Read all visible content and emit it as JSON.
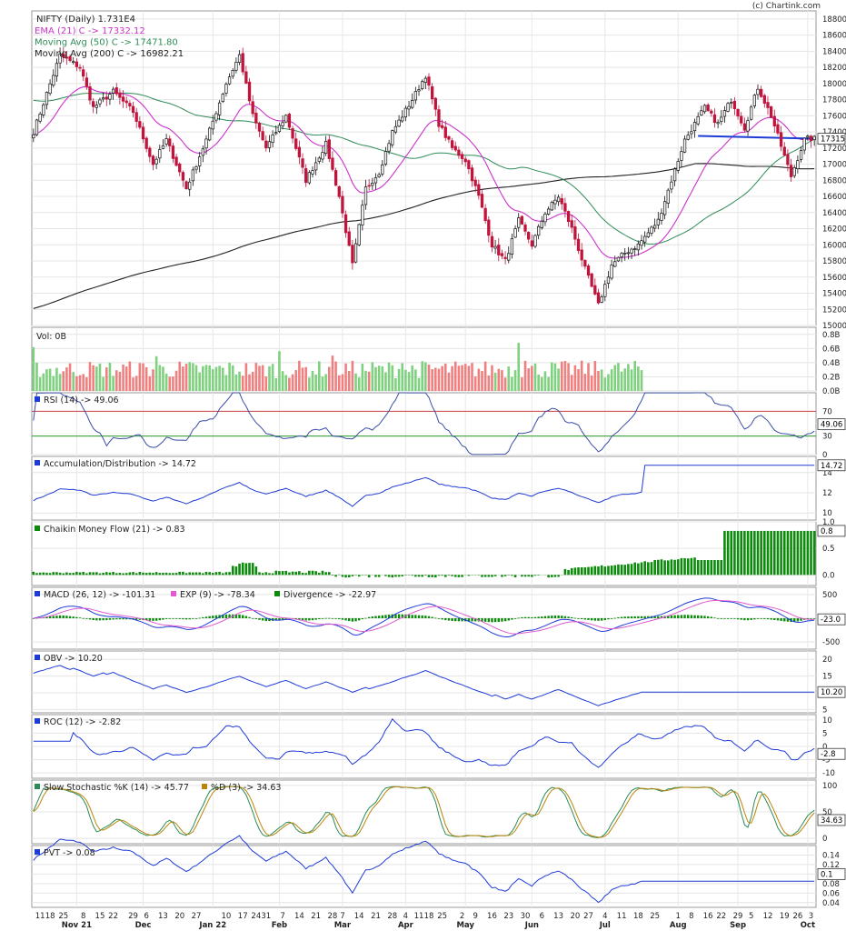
{
  "watermark": "(c) Chartink.com",
  "chart_data": {
    "type": "candlestick",
    "symbol_line": "NIFTY (Daily) 1.731E4",
    "price_panel": {
      "ylim": [
        15000,
        18900
      ],
      "ticks": [
        15000,
        15200,
        15400,
        15600,
        15800,
        16000,
        16200,
        16400,
        16600,
        16800,
        17000,
        17200,
        17400,
        17600,
        17800,
        18000,
        18200,
        18400,
        18600,
        18800
      ],
      "last_label": "17315",
      "overlays": [
        {
          "name": "EMA (21) C -> 17332.12",
          "color": "#cc33cc"
        },
        {
          "name": "Moving Avg (50) C -> 17471.80",
          "color": "#2e8b57"
        },
        {
          "name": "Moving Avg (200) C -> 16982.21",
          "color": "#222222"
        }
      ],
      "trendline_level": 17350,
      "waypoints": [
        [
          0,
          17400
        ],
        [
          8,
          18350
        ],
        [
          14,
          18200
        ],
        [
          18,
          17700
        ],
        [
          24,
          17900
        ],
        [
          30,
          17650
        ],
        [
          36,
          17000
        ],
        [
          40,
          17300
        ],
        [
          46,
          16700
        ],
        [
          52,
          17300
        ],
        [
          58,
          18000
        ],
        [
          62,
          18350
        ],
        [
          66,
          17600
        ],
        [
          70,
          17200
        ],
        [
          76,
          17600
        ],
        [
          82,
          16800
        ],
        [
          88,
          17250
        ],
        [
          92,
          16600
        ],
        [
          96,
          15750
        ],
        [
          100,
          16700
        ],
        [
          104,
          16900
        ],
        [
          108,
          17400
        ],
        [
          114,
          17800
        ],
        [
          118,
          18100
        ],
        [
          122,
          17500
        ],
        [
          126,
          17200
        ],
        [
          130,
          17050
        ],
        [
          134,
          16600
        ],
        [
          138,
          16000
        ],
        [
          142,
          15800
        ],
        [
          146,
          16300
        ],
        [
          150,
          16000
        ],
        [
          154,
          16400
        ],
        [
          158,
          16600
        ],
        [
          162,
          16200
        ],
        [
          166,
          15700
        ],
        [
          170,
          15250
        ],
        [
          174,
          15750
        ],
        [
          178,
          15900
        ],
        [
          182,
          16000
        ],
        [
          188,
          16300
        ],
        [
          192,
          16800
        ],
        [
          196,
          17300
        ],
        [
          202,
          17700
        ],
        [
          206,
          17500
        ],
        [
          210,
          17800
        ],
        [
          214,
          17450
        ],
        [
          218,
          17950
        ],
        [
          222,
          17600
        ],
        [
          226,
          17100
        ],
        [
          228,
          16850
        ],
        [
          232,
          17300
        ],
        [
          233,
          17315
        ]
      ]
    },
    "volume_panel": {
      "label": "Vol: 0B",
      "ticks": [
        "0.0B",
        "0.2B",
        "0.4B",
        "0.6B",
        "0.8B"
      ],
      "ylim": [
        0,
        0.9
      ],
      "bars_until_index": 183
    },
    "rsi_panel": {
      "label": "RSI (14) -> 49.06",
      "ticks": [
        0,
        30,
        70
      ],
      "ylim": [
        0,
        100
      ],
      "overbought": 70,
      "oversold": 30,
      "last_label": "49.06"
    },
    "ad_panel": {
      "label": "Accumulation/Distribution -> 14.72",
      "ticks": [
        10,
        12,
        14
      ],
      "ylim": [
        9.3,
        15.6
      ],
      "last_label": "14.72",
      "freeze_index": 183
    },
    "cmf_panel": {
      "label": "Chaikin Money Flow (21) -> 0.83",
      "ticks": [
        0.0,
        0.5,
        1.0
      ],
      "ylim": [
        -0.2,
        1.0
      ],
      "last_label": "0.8"
    },
    "macd_panel": {
      "label_macd": "MACD (26, 12) -> -101.31",
      "label_exp": "EXP (9) -> -78.34",
      "label_div": "Divergence -> -22.97",
      "ticks": [
        -500,
        0,
        500
      ],
      "ylim": [
        -650,
        650
      ],
      "last_label": "-23.0"
    },
    "obv_panel": {
      "label": "OBV -> 10.20",
      "ticks": [
        5,
        10,
        15,
        20
      ],
      "ylim": [
        4,
        22.5
      ],
      "last_label": "10.20",
      "freeze_index": 183
    },
    "roc_panel": {
      "label": "ROC (12) -> -2.82",
      "ticks": [
        -10,
        -5,
        0,
        5,
        10
      ],
      "ylim": [
        -12,
        12
      ],
      "last_label": "-2.8"
    },
    "stoch_panel": {
      "label_k": "Slow Stochastic %K (14) -> 45.77",
      "label_d": "%D (3) -> 34.63",
      "ticks": [
        0,
        50,
        100
      ],
      "ylim": [
        -10,
        110
      ],
      "last_label": "34.63"
    },
    "pvt_panel": {
      "label": "PVT -> 0.08",
      "ticks": [
        0.04,
        0.06,
        0.08,
        0.1,
        0.12,
        0.14
      ],
      "ylim": [
        0.03,
        0.16
      ],
      "last_label": "0.1",
      "freeze_index": 183
    },
    "x_axis": {
      "day_labels": [
        {
          "i": 2,
          "t": "11"
        },
        {
          "i": 5,
          "t": "18"
        },
        {
          "i": 9,
          "t": "25"
        },
        {
          "i": 15,
          "t": "8"
        },
        {
          "i": 20,
          "t": "15"
        },
        {
          "i": 24,
          "t": "22"
        },
        {
          "i": 30,
          "t": "29"
        },
        {
          "i": 34,
          "t": "6"
        },
        {
          "i": 39,
          "t": "13"
        },
        {
          "i": 44,
          "t": "20"
        },
        {
          "i": 49,
          "t": "27"
        },
        {
          "i": 58,
          "t": "10"
        },
        {
          "i": 63,
          "t": "17"
        },
        {
          "i": 67,
          "t": "24"
        },
        {
          "i": 70,
          "t": "31"
        },
        {
          "i": 75,
          "t": "7"
        },
        {
          "i": 80,
          "t": "14"
        },
        {
          "i": 85,
          "t": "21"
        },
        {
          "i": 90,
          "t": "28"
        },
        {
          "i": 93,
          "t": "7"
        },
        {
          "i": 98,
          "t": "14"
        },
        {
          "i": 103,
          "t": "21"
        },
        {
          "i": 108,
          "t": "28"
        },
        {
          "i": 112,
          "t": "4"
        },
        {
          "i": 116,
          "t": "11"
        },
        {
          "i": 119,
          "t": "18"
        },
        {
          "i": 123,
          "t": "25"
        },
        {
          "i": 129,
          "t": "2"
        },
        {
          "i": 133,
          "t": "9"
        },
        {
          "i": 138,
          "t": "16"
        },
        {
          "i": 143,
          "t": "23"
        },
        {
          "i": 148,
          "t": "30"
        },
        {
          "i": 153,
          "t": "6"
        },
        {
          "i": 158,
          "t": "13"
        },
        {
          "i": 163,
          "t": "20"
        },
        {
          "i": 167,
          "t": "27"
        },
        {
          "i": 172,
          "t": "4"
        },
        {
          "i": 177,
          "t": "11"
        },
        {
          "i": 182,
          "t": "18"
        },
        {
          "i": 187,
          "t": "25"
        },
        {
          "i": 194,
          "t": "1"
        },
        {
          "i": 198,
          "t": "8"
        },
        {
          "i": 203,
          "t": "16"
        },
        {
          "i": 207,
          "t": "22"
        },
        {
          "i": 212,
          "t": "29"
        },
        {
          "i": 216,
          "t": "5"
        },
        {
          "i": 221,
          "t": "12"
        },
        {
          "i": 226,
          "t": "19"
        },
        {
          "i": 230,
          "t": "26"
        },
        {
          "i": 234,
          "t": "3"
        }
      ],
      "month_labels": [
        {
          "i": 13,
          "t": "Nov 21"
        },
        {
          "i": 33,
          "t": "Dec"
        },
        {
          "i": 54,
          "t": "Jan 22"
        },
        {
          "i": 74,
          "t": "Feb"
        },
        {
          "i": 93,
          "t": "Mar"
        },
        {
          "i": 112,
          "t": "Apr"
        },
        {
          "i": 130,
          "t": "May"
        },
        {
          "i": 150,
          "t": "Jun"
        },
        {
          "i": 172,
          "t": "Jul"
        },
        {
          "i": 194,
          "t": "Aug"
        },
        {
          "i": 212,
          "t": "Sep"
        },
        {
          "i": 233,
          "t": "Oct"
        }
      ]
    }
  }
}
